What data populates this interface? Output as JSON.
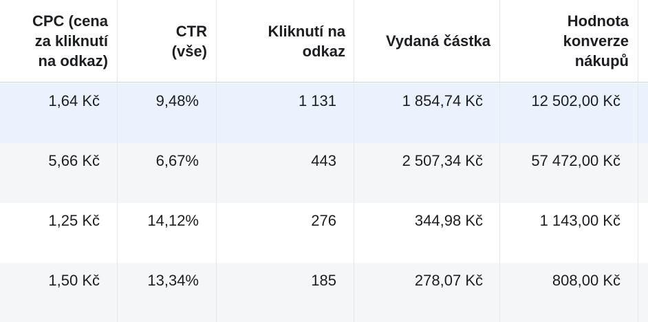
{
  "table": {
    "headers": [
      "CPC (cena za kliknutí na odkaz)",
      "CTR (vše)",
      "Kliknutí na odkaz",
      "Vydaná částka",
      "Hodnota konverze nákupů"
    ],
    "rows": [
      [
        "1,64 Kč",
        "9,48%",
        "1 131",
        "1 854,74 Kč",
        "12 502,00 Kč"
      ],
      [
        "5,66 Kč",
        "6,67%",
        "443",
        "2 507,34 Kč",
        "57 472,00 Kč"
      ],
      [
        "1,25 Kč",
        "14,12%",
        "276",
        "344,98 Kč",
        "1 143,00 Kč"
      ],
      [
        "1,50 Kč",
        "13,34%",
        "185",
        "278,07 Kč",
        "808,00 Kč"
      ]
    ]
  }
}
